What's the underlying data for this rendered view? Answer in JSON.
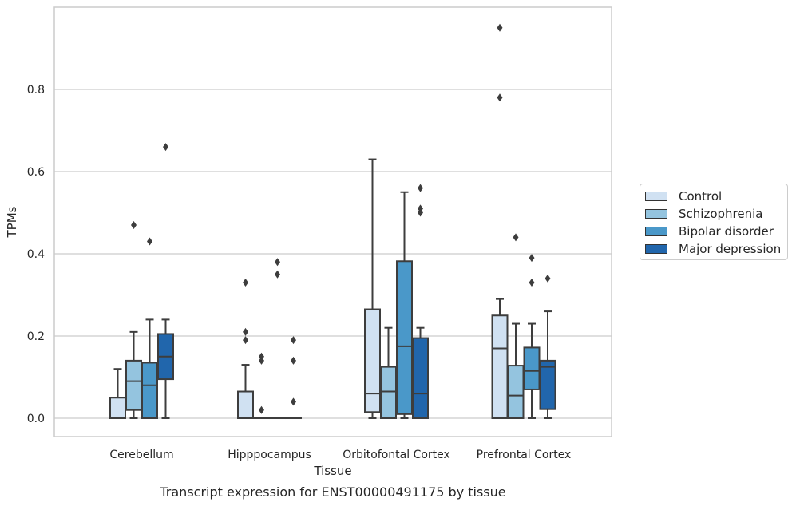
{
  "chart_data": {
    "type": "box",
    "xlabel": "Tissue",
    "ylabel": "TPMs",
    "caption": "Transcript expression for ENST00000491175 by tissue",
    "categories": [
      "Cerebellum",
      "Hipppocampus",
      "Orbitofontal Cortex",
      "Prefrontal Cortex"
    ],
    "yticks": [
      "0.0",
      "0.2",
      "0.4",
      "0.6",
      "0.8"
    ],
    "ylim": [
      -0.045,
      0.99
    ],
    "grid": "horizontal",
    "legend_position": "right",
    "series": [
      {
        "name": "Control",
        "color": "#d0e1f2",
        "boxes": [
          {
            "q1": 0.0,
            "median": 0.0,
            "q3": 0.05,
            "whisker_low": 0.0,
            "whisker_high": 0.12,
            "outliers": []
          },
          {
            "q1": 0.0,
            "median": 0.0,
            "q3": 0.065,
            "whisker_low": 0.0,
            "whisker_high": 0.13,
            "outliers": [
              0.33,
              0.21,
              0.19
            ]
          },
          {
            "q1": 0.015,
            "median": 0.06,
            "q3": 0.265,
            "whisker_low": 0.0,
            "whisker_high": 0.63,
            "outliers": []
          },
          {
            "q1": 0.0,
            "median": 0.17,
            "q3": 0.25,
            "whisker_low": 0.0,
            "whisker_high": 0.29,
            "outliers": [
              0.95,
              0.78
            ]
          }
        ]
      },
      {
        "name": "Schizophrenia",
        "color": "#94c4df",
        "boxes": [
          {
            "q1": 0.02,
            "median": 0.09,
            "q3": 0.14,
            "whisker_low": 0.0,
            "whisker_high": 0.21,
            "outliers": [
              0.47
            ]
          },
          {
            "q1": 0.0,
            "median": 0.0,
            "q3": 0.0,
            "whisker_low": 0.0,
            "whisker_high": 0.0,
            "outliers": [
              0.15,
              0.14,
              0.02
            ]
          },
          {
            "q1": 0.0,
            "median": 0.065,
            "q3": 0.125,
            "whisker_low": 0.0,
            "whisker_high": 0.22,
            "outliers": []
          },
          {
            "q1": 0.0,
            "median": 0.055,
            "q3": 0.128,
            "whisker_low": 0.0,
            "whisker_high": 0.23,
            "outliers": [
              0.44
            ]
          }
        ]
      },
      {
        "name": "Bipolar disorder",
        "color": "#4a98c9",
        "boxes": [
          {
            "q1": 0.0,
            "median": 0.08,
            "q3": 0.135,
            "whisker_low": 0.0,
            "whisker_high": 0.24,
            "outliers": [
              0.43
            ]
          },
          {
            "q1": 0.0,
            "median": 0.0,
            "q3": 0.0,
            "whisker_low": 0.0,
            "whisker_high": 0.0,
            "outliers": [
              0.38,
              0.35
            ]
          },
          {
            "q1": 0.01,
            "median": 0.175,
            "q3": 0.382,
            "whisker_low": 0.0,
            "whisker_high": 0.55,
            "outliers": []
          },
          {
            "q1": 0.07,
            "median": 0.115,
            "q3": 0.172,
            "whisker_low": 0.0,
            "whisker_high": 0.23,
            "outliers": [
              0.39,
              0.33
            ]
          }
        ]
      },
      {
        "name": "Major depression",
        "color": "#2166ac",
        "boxes": [
          {
            "q1": 0.095,
            "median": 0.15,
            "q3": 0.205,
            "whisker_low": 0.0,
            "whisker_high": 0.24,
            "outliers": [
              0.66
            ]
          },
          {
            "q1": 0.0,
            "median": 0.0,
            "q3": 0.0,
            "whisker_low": 0.0,
            "whisker_high": 0.0,
            "outliers": [
              0.19,
              0.14,
              0.04
            ]
          },
          {
            "q1": 0.0,
            "median": 0.06,
            "q3": 0.195,
            "whisker_low": 0.0,
            "whisker_high": 0.22,
            "outliers": [
              0.56,
              0.51,
              0.5
            ]
          },
          {
            "q1": 0.022,
            "median": 0.125,
            "q3": 0.14,
            "whisker_low": 0.0,
            "whisker_high": 0.26,
            "outliers": [
              0.34
            ]
          }
        ]
      }
    ]
  }
}
